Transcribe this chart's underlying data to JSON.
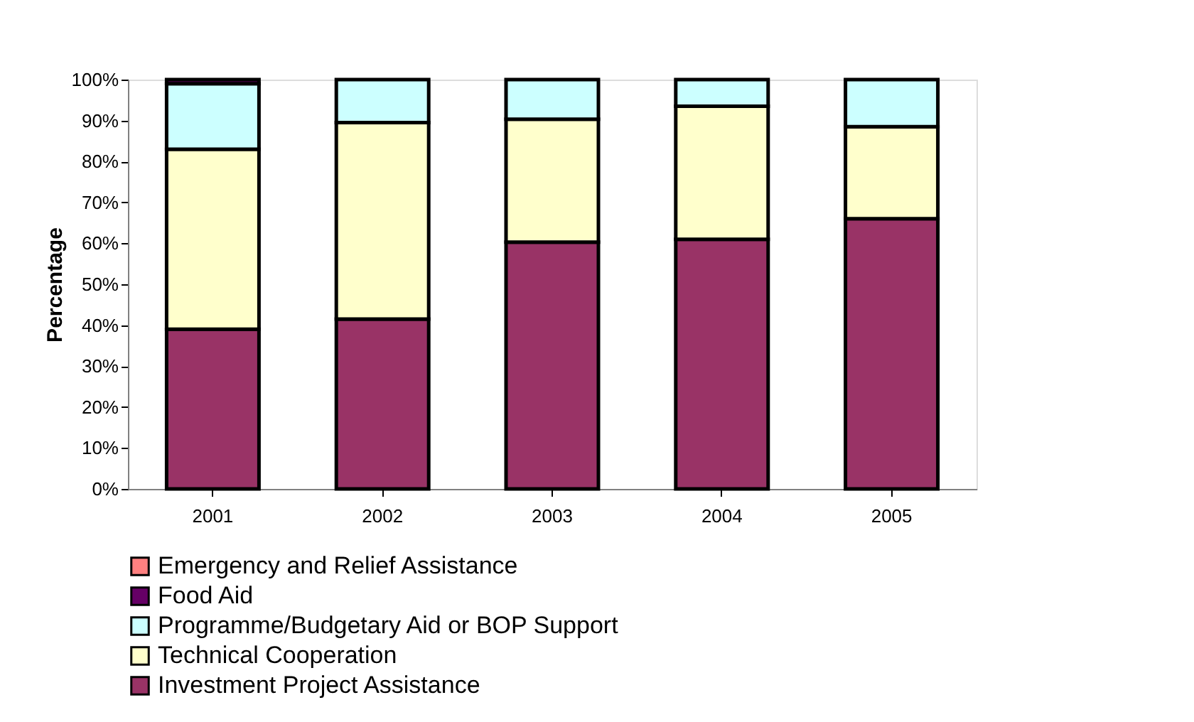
{
  "chart_data": {
    "type": "bar",
    "stacked": true,
    "ylabel": "Percentage",
    "categories": [
      "2001",
      "2002",
      "2003",
      "2004",
      "2005"
    ],
    "series": [
      {
        "name": "Investment Project Assistance",
        "color": "#993366",
        "values": [
          39,
          41.5,
          60.3,
          61,
          66
        ]
      },
      {
        "name": "Technical Cooperation",
        "color": "#ffffcc",
        "values": [
          44,
          48,
          30,
          32.5,
          22.5
        ]
      },
      {
        "name": "Programme/Budgetary Aid or BOP Support",
        "color": "#ccffff",
        "values": [
          16,
          10.5,
          9.7,
          6.5,
          11.5
        ]
      },
      {
        "name": "Food Aid",
        "color": "#660066",
        "values": [
          1,
          null,
          null,
          null,
          null
        ]
      },
      {
        "name": "Emergency and Relief Assistance",
        "color": "#ff8080",
        "values": [
          null,
          null,
          null,
          null,
          null
        ]
      }
    ],
    "ylim": [
      0,
      100
    ],
    "yticks": [
      {
        "value": 0,
        "label": "0%"
      },
      {
        "value": 10,
        "label": "10%"
      },
      {
        "value": 20,
        "label": "20%"
      },
      {
        "value": 30,
        "label": "30%"
      },
      {
        "value": 40,
        "label": "40%"
      },
      {
        "value": 50,
        "label": "50%"
      },
      {
        "value": 60,
        "label": "60%"
      },
      {
        "value": 70,
        "label": "70%"
      },
      {
        "value": 80,
        "label": "80%"
      },
      {
        "value": 90,
        "label": "90%"
      },
      {
        "value": 100,
        "label": "100%"
      }
    ],
    "grid": false,
    "legend": "bottom"
  }
}
